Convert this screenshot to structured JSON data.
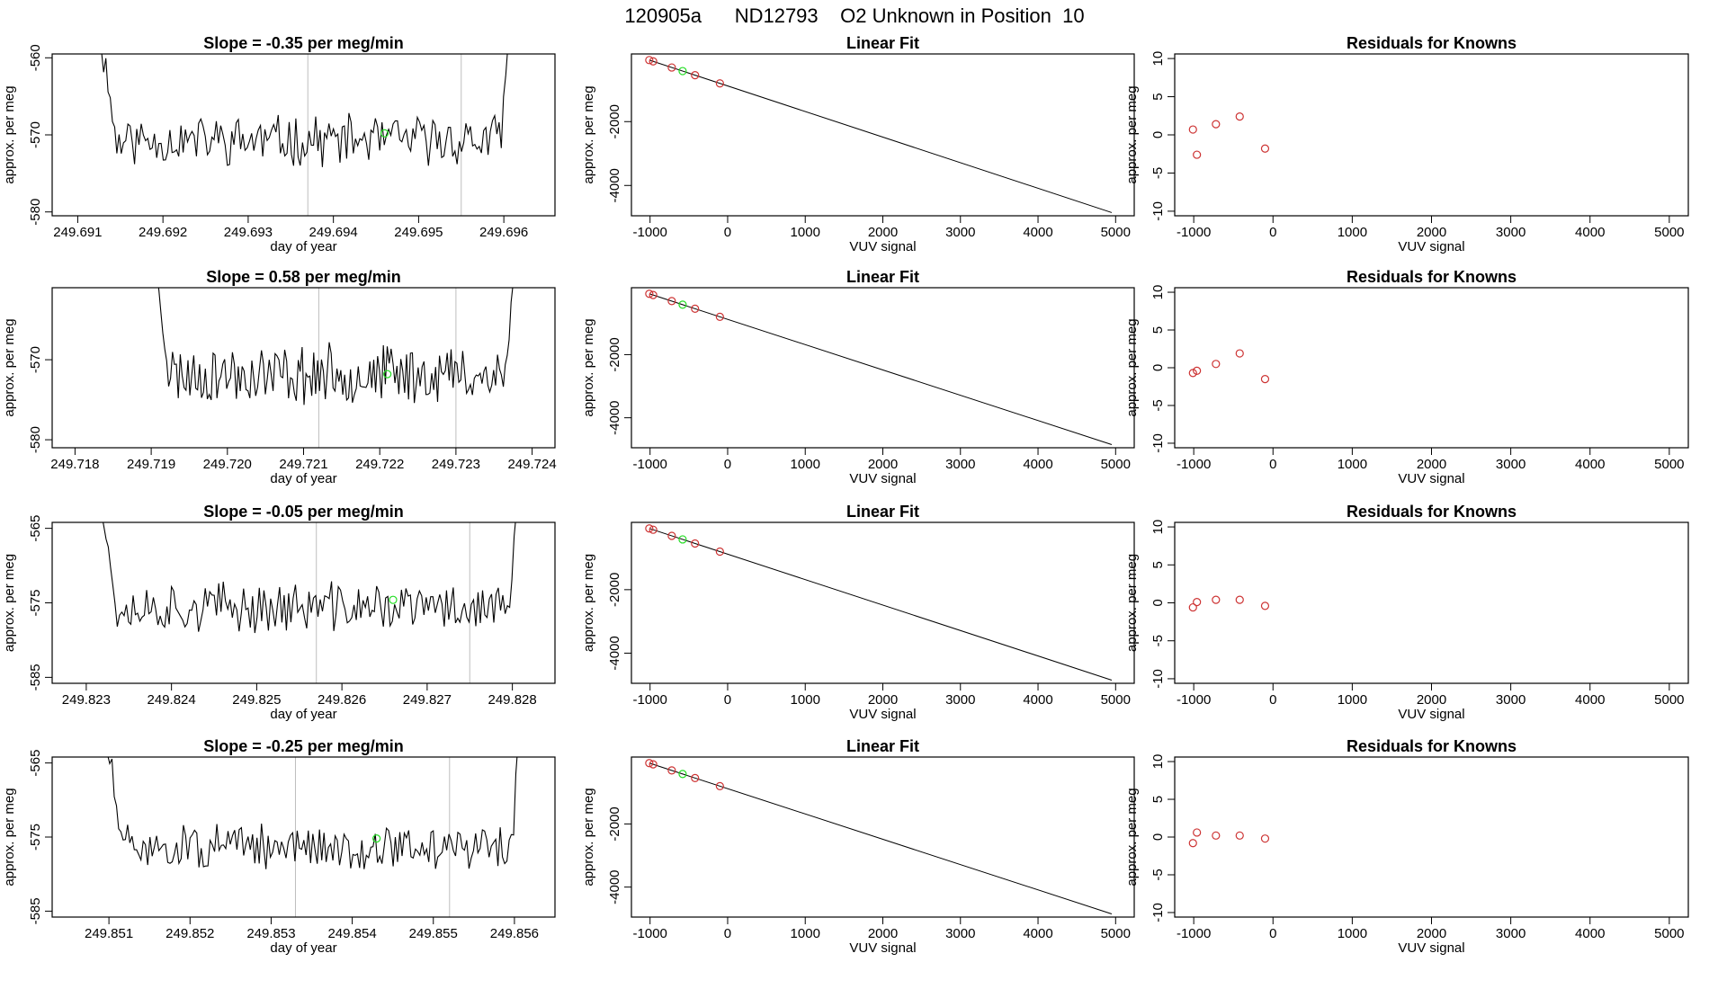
{
  "page": {
    "title_id": "120905a",
    "title_tank": "ND12793",
    "title_desc": "O2 Unknown in Position",
    "title_pos": "10"
  },
  "colors": {
    "line": "#000000",
    "box": "#000000",
    "vline": "#bebebe",
    "known": "#cd3333",
    "unknown": "#22dd22"
  },
  "chart_data": [
    {
      "type": "line",
      "panel": "time-series",
      "row": 1,
      "title_prefix": "Slope = ",
      "slope_value": "-0.35",
      "slope_unit": " per meg/min",
      "xlabel": "day of year",
      "ylabel": "approx. per meg",
      "xlim": [
        249.6907,
        249.6966
      ],
      "ylim": [
        -580.5,
        -559.5
      ],
      "xticks": [
        "249.691",
        "249.692",
        "249.693",
        "249.694",
        "249.695",
        "249.696"
      ],
      "yticks": [
        "-560",
        "-570",
        "-580"
      ],
      "vlines": [
        249.6937,
        249.6955
      ],
      "series_start": 249.6912,
      "series_end": 249.6961,
      "series_n": 190,
      "base": -570.7,
      "amp": 2.8,
      "seed": 11,
      "green_point": {
        "x": 249.6946,
        "y": -569.8
      }
    },
    {
      "type": "scatter",
      "panel": "linear-fit",
      "row": 1,
      "title": "Linear Fit",
      "xlabel": "VUV signal",
      "ylabel": "approx. per meg",
      "xlim": [
        -1240,
        5240
      ],
      "ylim": [
        -4950,
        120
      ],
      "xticks": [
        "-1000",
        "0",
        "1000",
        "2000",
        "3000",
        "4000",
        "5000"
      ],
      "yticks": [
        "-2000",
        "-4000"
      ],
      "fit_line": {
        "x": [
          -1000,
          4950
        ],
        "y": [
          -80,
          -4850
        ]
      },
      "known_x": [
        -1010,
        -960,
        -720,
        -420,
        -100
      ],
      "green_x": [
        -580
      ]
    },
    {
      "type": "scatter",
      "panel": "residuals",
      "row": 1,
      "title": "Residuals for Knowns",
      "xlabel": "VUV signal",
      "ylabel": "approx. per meg",
      "xlim": [
        -1240,
        5240
      ],
      "ylim": [
        -10.6,
        10.6
      ],
      "xticks": [
        "-1000",
        "0",
        "1000",
        "2000",
        "3000",
        "4000",
        "5000"
      ],
      "yticks": [
        "10",
        "5",
        "0",
        "-5",
        "-10"
      ],
      "points": {
        "x": [
          -1010,
          -960,
          -720,
          -420,
          -100
        ],
        "y": [
          0.7,
          -2.6,
          1.4,
          2.4,
          -1.8
        ]
      }
    },
    {
      "type": "line",
      "panel": "time-series",
      "row": 2,
      "title_prefix": "Slope = ",
      "slope_value": "0.58",
      "slope_unit": " per meg/min",
      "xlabel": "day of year",
      "ylabel": "approx. per meg",
      "xlim": [
        249.7177,
        249.7243
      ],
      "ylim": [
        -581,
        -561
      ],
      "xticks": [
        "249.718",
        "249.719",
        "249.720",
        "249.721",
        "249.722",
        "249.723",
        "249.724"
      ],
      "yticks": [
        "-570",
        "-580"
      ],
      "vlines": [
        249.7212,
        249.723
      ],
      "series_start": 249.719,
      "series_end": 249.7238,
      "series_n": 190,
      "base": -571.8,
      "amp": 3.2,
      "seed": 23,
      "green_point": {
        "x": 249.7221,
        "y": -571.8
      }
    },
    {
      "type": "scatter",
      "panel": "linear-fit",
      "row": 2,
      "title": "Linear Fit",
      "xlabel": "VUV signal",
      "ylabel": "approx. per meg",
      "xlim": [
        -1240,
        5240
      ],
      "ylim": [
        -4950,
        120
      ],
      "xticks": [
        "-1000",
        "0",
        "1000",
        "2000",
        "3000",
        "4000",
        "5000"
      ],
      "yticks": [
        "-2000",
        "-4000"
      ],
      "fit_line": {
        "x": [
          -1000,
          4950
        ],
        "y": [
          -80,
          -4850
        ]
      },
      "known_x": [
        -1010,
        -960,
        -720,
        -420,
        -100
      ],
      "green_x": [
        -580
      ]
    },
    {
      "type": "scatter",
      "panel": "residuals",
      "row": 2,
      "title": "Residuals for Knowns",
      "xlabel": "VUV signal",
      "ylabel": "approx. per meg",
      "xlim": [
        -1240,
        5240
      ],
      "ylim": [
        -10.6,
        10.6
      ],
      "xticks": [
        "-1000",
        "0",
        "1000",
        "2000",
        "3000",
        "4000",
        "5000"
      ],
      "yticks": [
        "10",
        "5",
        "0",
        "-5",
        "-10"
      ],
      "points": {
        "x": [
          -1010,
          -960,
          -720,
          -420,
          -100
        ],
        "y": [
          -0.7,
          -0.4,
          0.5,
          1.9,
          -1.5
        ]
      }
    },
    {
      "type": "line",
      "panel": "time-series",
      "row": 3,
      "title_prefix": "Slope = ",
      "slope_value": "-0.05",
      "slope_unit": " per meg/min",
      "xlabel": "day of year",
      "ylabel": "approx. per meg",
      "xlim": [
        249.8226,
        249.8285
      ],
      "ylim": [
        -585.8,
        -564.2
      ],
      "xticks": [
        "249.823",
        "249.824",
        "249.825",
        "249.826",
        "249.827",
        "249.828"
      ],
      "yticks": [
        "-565",
        "-575",
        "-585"
      ],
      "vlines": [
        249.8257,
        249.8275
      ],
      "series_start": 249.8231,
      "series_end": 249.8281,
      "series_n": 190,
      "base": -575.6,
      "amp": 2.9,
      "seed": 37,
      "green_point": {
        "x": 249.8266,
        "y": -574.6
      }
    },
    {
      "type": "scatter",
      "panel": "linear-fit",
      "row": 3,
      "title": "Linear Fit",
      "xlabel": "VUV signal",
      "ylabel": "approx. per meg",
      "xlim": [
        -1240,
        5240
      ],
      "ylim": [
        -4950,
        120
      ],
      "xticks": [
        "-1000",
        "0",
        "1000",
        "2000",
        "3000",
        "4000",
        "5000"
      ],
      "yticks": [
        "-2000",
        "-4000"
      ],
      "fit_line": {
        "x": [
          -1000,
          4950
        ],
        "y": [
          -80,
          -4850
        ]
      },
      "known_x": [
        -1010,
        -960,
        -720,
        -420,
        -100
      ],
      "green_x": [
        -580
      ]
    },
    {
      "type": "scatter",
      "panel": "residuals",
      "row": 3,
      "title": "Residuals for Knowns",
      "xlabel": "VUV signal",
      "ylabel": "approx. per meg",
      "xlim": [
        -1240,
        5240
      ],
      "ylim": [
        -10.6,
        10.6
      ],
      "xticks": [
        "-1000",
        "0",
        "1000",
        "2000",
        "3000",
        "4000",
        "5000"
      ],
      "yticks": [
        "10",
        "5",
        "0",
        "-5",
        "-10"
      ],
      "points": {
        "x": [
          -1010,
          -960,
          -720,
          -420,
          -100
        ],
        "y": [
          -0.6,
          0.1,
          0.4,
          0.4,
          -0.4
        ]
      }
    },
    {
      "type": "line",
      "panel": "time-series",
      "row": 4,
      "title_prefix": "Slope = ",
      "slope_value": "-0.25",
      "slope_unit": " per meg/min",
      "xlabel": "day of year",
      "ylabel": "approx. per meg",
      "xlim": [
        249.8503,
        249.8565
      ],
      "ylim": [
        -585.8,
        -564.2
      ],
      "xticks": [
        "249.851",
        "249.852",
        "249.853",
        "249.854",
        "249.855",
        "249.856"
      ],
      "yticks": [
        "-565",
        "-575",
        "-585"
      ],
      "vlines": [
        249.8533,
        249.8552
      ],
      "series_start": 249.8509,
      "series_end": 249.8561,
      "series_n": 190,
      "base": -576.4,
      "amp": 2.6,
      "seed": 51,
      "green_point": {
        "x": 249.8543,
        "y": -575.2
      }
    },
    {
      "type": "scatter",
      "panel": "linear-fit",
      "row": 4,
      "title": "Linear Fit",
      "xlabel": "VUV signal",
      "ylabel": "approx. per meg",
      "xlim": [
        -1240,
        5240
      ],
      "ylim": [
        -4950,
        120
      ],
      "xticks": [
        "-1000",
        "0",
        "1000",
        "2000",
        "3000",
        "4000",
        "5000"
      ],
      "yticks": [
        "-2000",
        "-4000"
      ],
      "fit_line": {
        "x": [
          -1000,
          4950
        ],
        "y": [
          -80,
          -4850
        ]
      },
      "known_x": [
        -1010,
        -960,
        -720,
        -420,
        -100
      ],
      "green_x": [
        -580
      ]
    },
    {
      "type": "scatter",
      "panel": "residuals",
      "row": 4,
      "title": "Residuals for Knowns",
      "xlabel": "VUV signal",
      "ylabel": "approx. per meg",
      "xlim": [
        -1240,
        5240
      ],
      "ylim": [
        -10.6,
        10.6
      ],
      "xticks": [
        "-1000",
        "0",
        "1000",
        "2000",
        "3000",
        "4000",
        "5000"
      ],
      "yticks": [
        "10",
        "5",
        "0",
        "-5",
        "-10"
      ],
      "points": {
        "x": [
          -1010,
          -960,
          -720,
          -420,
          -100
        ],
        "y": [
          -0.8,
          0.6,
          0.2,
          0.2,
          -0.2
        ]
      }
    }
  ]
}
